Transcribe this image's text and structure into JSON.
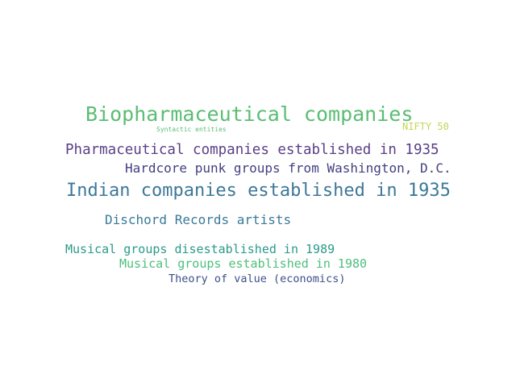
{
  "words": [
    {
      "text": "Biopharmaceutical companies",
      "color": "#5bbd73"
    },
    {
      "text": "Syntactic entities",
      "color": "#5bbd73"
    },
    {
      "text": "NIFTY 50",
      "color": "#c2d65a"
    },
    {
      "text": "Pharmaceutical companies established in 1935",
      "color": "#5a3f86"
    },
    {
      "text": "Hardcore punk groups from Washington, D.C.",
      "color": "#433f80"
    },
    {
      "text": "Indian companies established in 1935",
      "color": "#3d7898"
    },
    {
      "text": "Dischord Records artists",
      "color": "#3a7a98"
    },
    {
      "text": "Musical groups disestablished in 1989",
      "color": "#2a9a8a"
    },
    {
      "text": "Musical groups established in 1980",
      "color": "#4cbf7b"
    },
    {
      "text": "Theory of value (economics)",
      "color": "#3b4f8a"
    }
  ]
}
